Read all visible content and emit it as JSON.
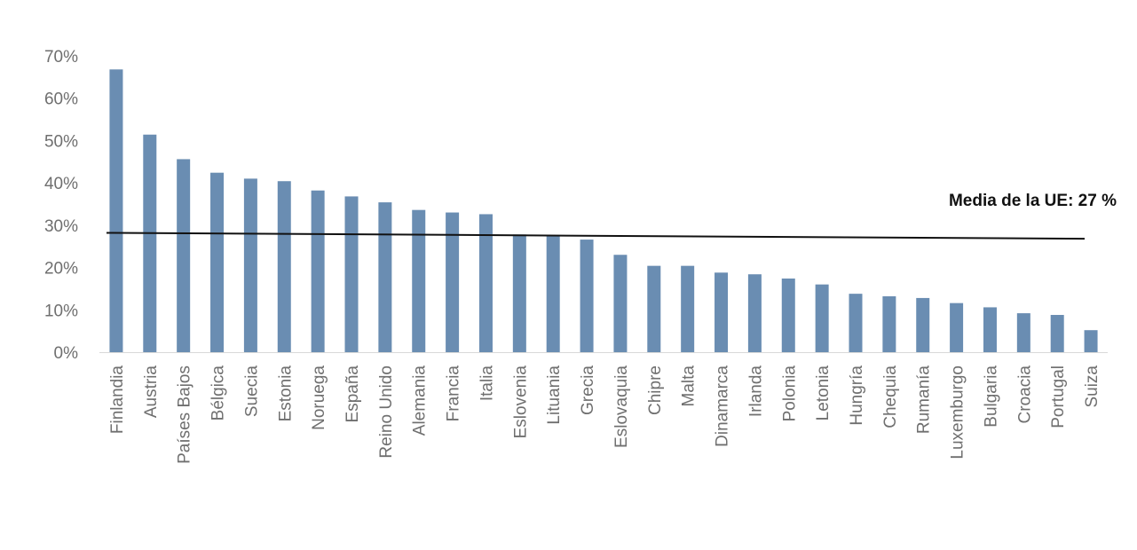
{
  "chart_data": {
    "type": "bar",
    "categories": [
      "Finlandia",
      "Austria",
      "Países Bajos",
      "Bélgica",
      "Suecia",
      "Estonia",
      "Noruega",
      "España",
      "Reino Unido",
      "Alemania",
      "Francia",
      "Italia",
      "Eslovenia",
      "Lituania",
      "Grecia",
      "Eslovaquia",
      "Chipre",
      "Malta",
      "Dinamarca",
      "Irlanda",
      "Polonia",
      "Letonia",
      "Hungría",
      "Chequia",
      "Rumanía",
      "Luxemburgo",
      "Bulgaria",
      "Croacia",
      "Portugal",
      "Suiza"
    ],
    "values": [
      66.8,
      51.4,
      45.6,
      42.4,
      41.0,
      40.4,
      38.2,
      36.8,
      35.4,
      33.6,
      33.0,
      32.6,
      27.8,
      27.6,
      26.6,
      23.0,
      20.4,
      20.4,
      18.8,
      18.4,
      17.4,
      16.0,
      13.8,
      13.2,
      12.8,
      11.6,
      10.6,
      9.2,
      8.8,
      5.2
    ],
    "yticks": [
      "0%",
      "10%",
      "20%",
      "30%",
      "40%",
      "50%",
      "60%",
      "70%"
    ],
    "ylim": [
      0,
      70
    ],
    "bar_color": "#6a8db2",
    "average": {
      "label": "Media de la UE: 27 %",
      "start_value": 28.2,
      "end_value": 26.8,
      "color": "#111111"
    },
    "grid": false,
    "legend": "none"
  }
}
